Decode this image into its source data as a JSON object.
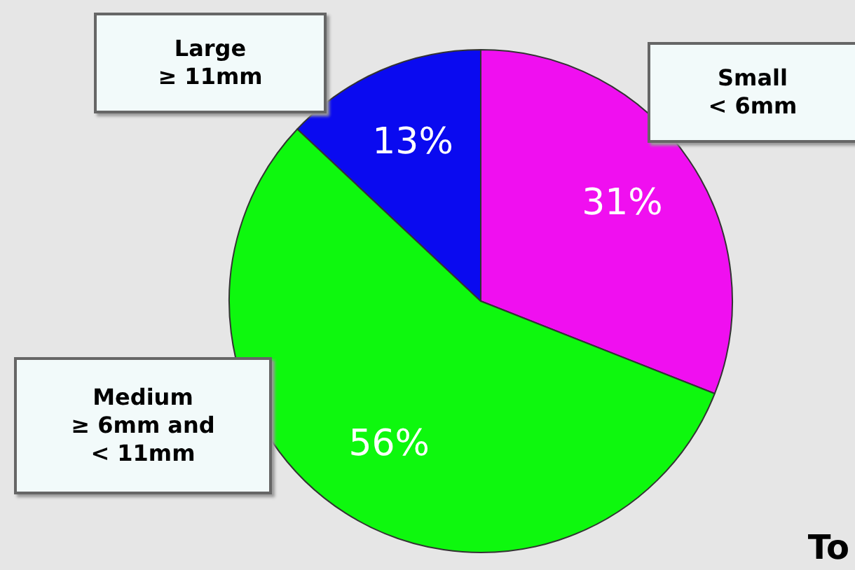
{
  "chart_data": {
    "type": "pie",
    "categories": [
      "Small\n< 6mm",
      "Medium\n≥ 6mm and\n< 11mm",
      "Large\n≥ 11mm"
    ],
    "values": [
      31,
      56,
      13
    ],
    "colors": [
      "#f00ff0",
      "#0ef80e",
      "#0a0af0"
    ],
    "value_labels": [
      "31%",
      "56%",
      "13%"
    ],
    "legend": false,
    "annotations": [
      "To"
    ]
  }
}
